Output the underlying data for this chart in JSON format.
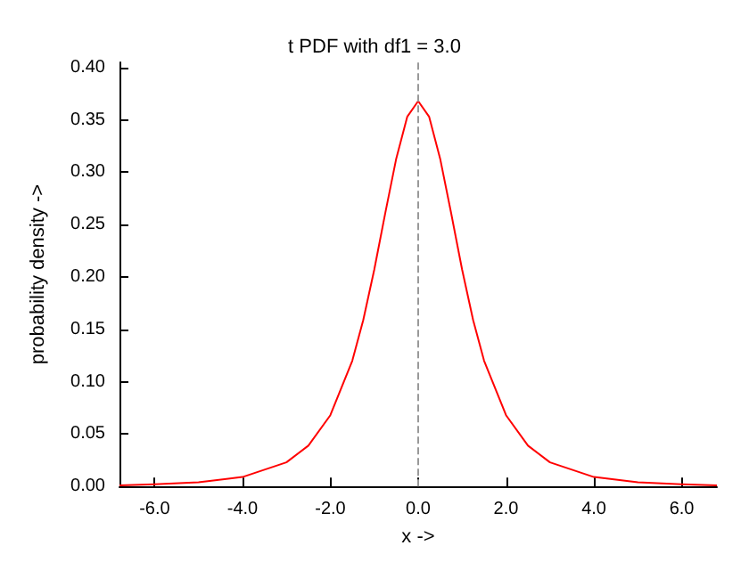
{
  "chart_data": {
    "type": "line",
    "title": "t PDF with df1 = 3.0",
    "xlabel": "x ->",
    "ylabel": "probability density ->",
    "x": [
      -6.8,
      -6,
      -5,
      -4,
      -3,
      -2.5,
      -2,
      -1.5,
      -1.25,
      -1,
      -0.75,
      -0.5,
      -0.25,
      0,
      0.25,
      0.5,
      0.75,
      1,
      1.25,
      1.5,
      2,
      2.5,
      3,
      4,
      5,
      6,
      6.8
    ],
    "series": [
      {
        "color": "#ff0000",
        "values": [
          0.001,
          0.002,
          0.004,
          0.009,
          0.023,
          0.039,
          0.068,
          0.12,
          0.159,
          0.207,
          0.261,
          0.313,
          0.353,
          0.368,
          0.353,
          0.313,
          0.261,
          0.207,
          0.159,
          0.12,
          0.068,
          0.039,
          0.023,
          0.009,
          0.004,
          0.002,
          0.001
        ]
      }
    ],
    "xlim": [
      -6.8,
      6.8
    ],
    "xticks": [
      {
        "value": -6,
        "label": "-6.0"
      },
      {
        "value": -4,
        "label": "-4.0"
      },
      {
        "value": -2,
        "label": "-2.0"
      },
      {
        "value": 0,
        "label": "0.0"
      },
      {
        "value": 2,
        "label": "2.0"
      },
      {
        "value": 4,
        "label": "4.0"
      },
      {
        "value": 6,
        "label": "6.0"
      }
    ],
    "ylim": [
      0,
      0.405
    ],
    "yticks": [
      {
        "value": 0,
        "label": "0.00"
      },
      {
        "value": 0.05,
        "label": "0.05"
      },
      {
        "value": 0.1,
        "label": "0.10"
      },
      {
        "value": 0.15,
        "label": "0.15"
      },
      {
        "value": 0.2,
        "label": "0.20"
      },
      {
        "value": 0.25,
        "label": "0.25"
      },
      {
        "value": 0.3,
        "label": "0.30"
      },
      {
        "value": 0.35,
        "label": "0.35"
      },
      {
        "value": 0.4,
        "label": "0.40"
      }
    ],
    "ref_lines": [
      {
        "axis": "x",
        "value": 0,
        "color": "#999999",
        "line_style": "dashed"
      }
    ],
    "grid": false,
    "marker": "none",
    "line_style": "solid"
  }
}
